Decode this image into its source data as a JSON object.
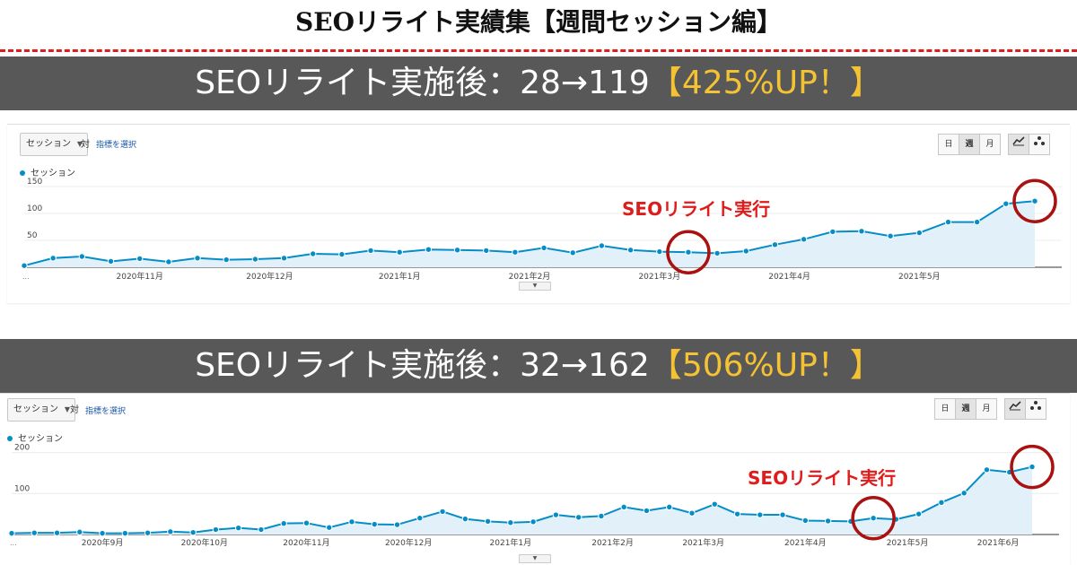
{
  "title": "SEOリライト実績集【週間セッション編】",
  "panels": [
    {
      "banner": {
        "prefix": "SEOリライト実施後：28→119",
        "highlight": "【425%UP！】"
      },
      "controls": {
        "metric": "セッション",
        "vs": "対",
        "pick": "指標を選択",
        "day": "日",
        "week": "週",
        "month": "月"
      },
      "annotation": "SEOリライト実行"
    },
    {
      "banner": {
        "prefix": "SEOリライト実施後：32→162",
        "highlight": "【506%UP！】"
      },
      "controls": {
        "metric": "セッション",
        "vs": "対",
        "pick": "指標を選択",
        "day": "日",
        "week": "週",
        "month": "月"
      },
      "annotation": "SEOリライト実行"
    }
  ],
  "chart_data": [
    {
      "type": "area",
      "legend": "セッション",
      "ylim": [
        0,
        160
      ],
      "y_ticks": [
        50,
        100,
        150
      ],
      "x_labels": [
        "2020年11月",
        "2020年12月",
        "2021年1月",
        "2021年2月",
        "2021年3月",
        "2021年4月",
        "2021年5月"
      ],
      "x_label_index": [
        4,
        8.5,
        13,
        17.5,
        22,
        26.5,
        31
      ],
      "first_label": "...",
      "series": [
        {
          "values": [
            3,
            17,
            20,
            11,
            16,
            10,
            17,
            14,
            15,
            17,
            25,
            24,
            31,
            28,
            33,
            32,
            31,
            28,
            36,
            27,
            40,
            32,
            29,
            28,
            26,
            30,
            42,
            52,
            66,
            67,
            58,
            64,
            84,
            84,
            118,
            123
          ]
        }
      ],
      "color": "#058dc7",
      "fill": "#e2f1f9",
      "rewrite_index": 23
    },
    {
      "type": "area",
      "legend": "セッション",
      "ylim": [
        0,
        210
      ],
      "y_ticks": [
        100,
        200
      ],
      "x_labels": [
        "2020年9月",
        "2020年10月",
        "2020年11月",
        "2020年12月",
        "2021年1月",
        "2021年2月",
        "2021年3月",
        "2021年4月",
        "2021年5月",
        "2021年6月"
      ],
      "x_label_index": [
        4,
        8.5,
        13,
        17.5,
        22,
        26.5,
        30.5,
        35,
        39.5,
        43.5
      ],
      "first_label": "...",
      "series": [
        {
          "values": [
            3,
            4,
            4,
            6,
            3,
            3,
            4,
            7,
            5,
            12,
            16,
            12,
            27,
            28,
            17,
            31,
            25,
            24,
            40,
            56,
            38,
            32,
            29,
            31,
            48,
            42,
            45,
            67,
            58,
            67,
            52,
            74,
            50,
            48,
            48,
            34,
            33,
            32,
            40,
            37,
            50,
            78,
            101,
            158,
            152,
            165
          ]
        }
      ],
      "color": "#058dc7",
      "fill": "#e2f1f9",
      "rewrite_index": 38
    }
  ]
}
